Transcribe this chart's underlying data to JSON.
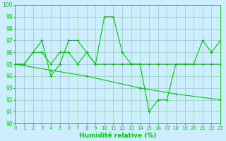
{
  "series1": [
    95,
    95,
    96,
    97,
    94,
    95,
    97,
    97,
    96,
    95,
    99,
    99,
    96,
    95,
    95,
    91,
    92,
    92,
    95,
    95,
    95,
    97,
    96,
    97
  ],
  "series2": [
    95,
    95,
    96,
    96,
    95,
    96,
    96,
    95,
    96,
    95,
    95,
    95,
    95,
    95,
    95,
    95,
    95,
    95,
    95,
    95,
    95,
    95,
    95,
    95
  ],
  "series3_x": [
    0,
    4,
    8,
    14,
    18,
    23
  ],
  "series3_y": [
    95,
    94.5,
    94,
    93,
    92.5,
    92
  ],
  "line_color": "#00CC00",
  "bg_color": "#CCEEFF",
  "grid_color": "#99CCBB",
  "xlabel": "Humidité relative (%)",
  "xlim": [
    0,
    23
  ],
  "ylim": [
    90,
    100
  ],
  "yticks": [
    90,
    91,
    92,
    93,
    94,
    95,
    96,
    97,
    98,
    99,
    100
  ],
  "xticks": [
    0,
    1,
    2,
    3,
    4,
    5,
    6,
    7,
    8,
    9,
    10,
    11,
    12,
    13,
    14,
    15,
    16,
    17,
    18,
    19,
    20,
    21,
    22,
    23
  ],
  "markersize": 2.5,
  "linewidth": 0.8,
  "xlabel_fontsize": 6.5,
  "tick_fontsize": 5.0,
  "ytick_fontsize": 5.5
}
